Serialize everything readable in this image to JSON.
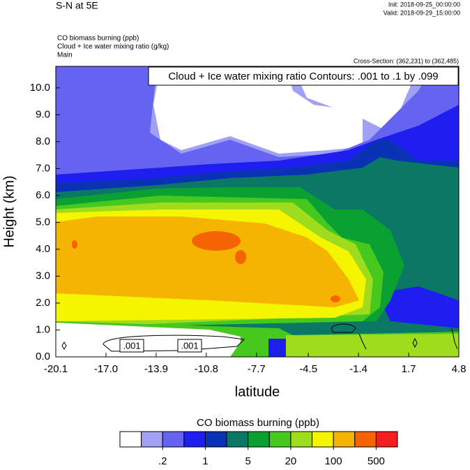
{
  "chart_data": {
    "type": "contour",
    "title": "S-N at 5E",
    "init": "Init: 2018-09-25_00:00:00",
    "valid": "Valid: 2018-09-29_15:00:00",
    "fields": [
      "CO biomass burning   (ppb)",
      "Cloud + Ice water mixing ratio   (g/kg)",
      "Main"
    ],
    "cross_section": "Cross-Section: (362,231) to (362,485)",
    "contour_note": "Cloud + Ice water mixing ratio Contours: .001 to .1 by .099",
    "contour_line_labels": [
      ".001",
      ".001"
    ],
    "xlabel": "latitude",
    "ylabel": "Height (km)",
    "xlim": [
      -20.1,
      4.8
    ],
    "xticks": [
      -20.1,
      {
        "value": -17,
        "label": "-17.0"
      },
      -13.9,
      -10.8,
      -7.7,
      -4.5,
      -1.4,
      1.7,
      4.8
    ],
    "ylim": [
      0,
      10.8
    ],
    "yticks": [
      {
        "value": 0,
        "label": "0.0"
      },
      {
        "value": 1,
        "label": "1.0"
      },
      {
        "value": 2,
        "label": "2.0"
      },
      {
        "value": 3,
        "label": "3.0"
      },
      {
        "value": 4,
        "label": "4.0"
      },
      {
        "value": 5,
        "label": "5.0"
      },
      {
        "value": 6,
        "label": "6.0"
      },
      {
        "value": 7,
        "label": "7.0"
      },
      {
        "value": 8,
        "label": "8.0"
      },
      {
        "value": 9,
        "label": "9.0"
      },
      {
        "value": 10,
        "label": "10.0"
      }
    ],
    "colorbar": {
      "title": "CO biomass burning  (ppb)",
      "colors": [
        "#ffffff",
        "#a0a0f5",
        "#6464f0",
        "#1e1ef0",
        "#0a32b4",
        "#0a7864",
        "#0aa032",
        "#46c81e",
        "#a0dc1e",
        "#f5f500",
        "#f5b400",
        "#f56400",
        "#f51e1e"
      ],
      "levels": [
        {
          "value": 0.2,
          "label": ".2"
        },
        1,
        5,
        20,
        100,
        500
      ]
    }
  }
}
